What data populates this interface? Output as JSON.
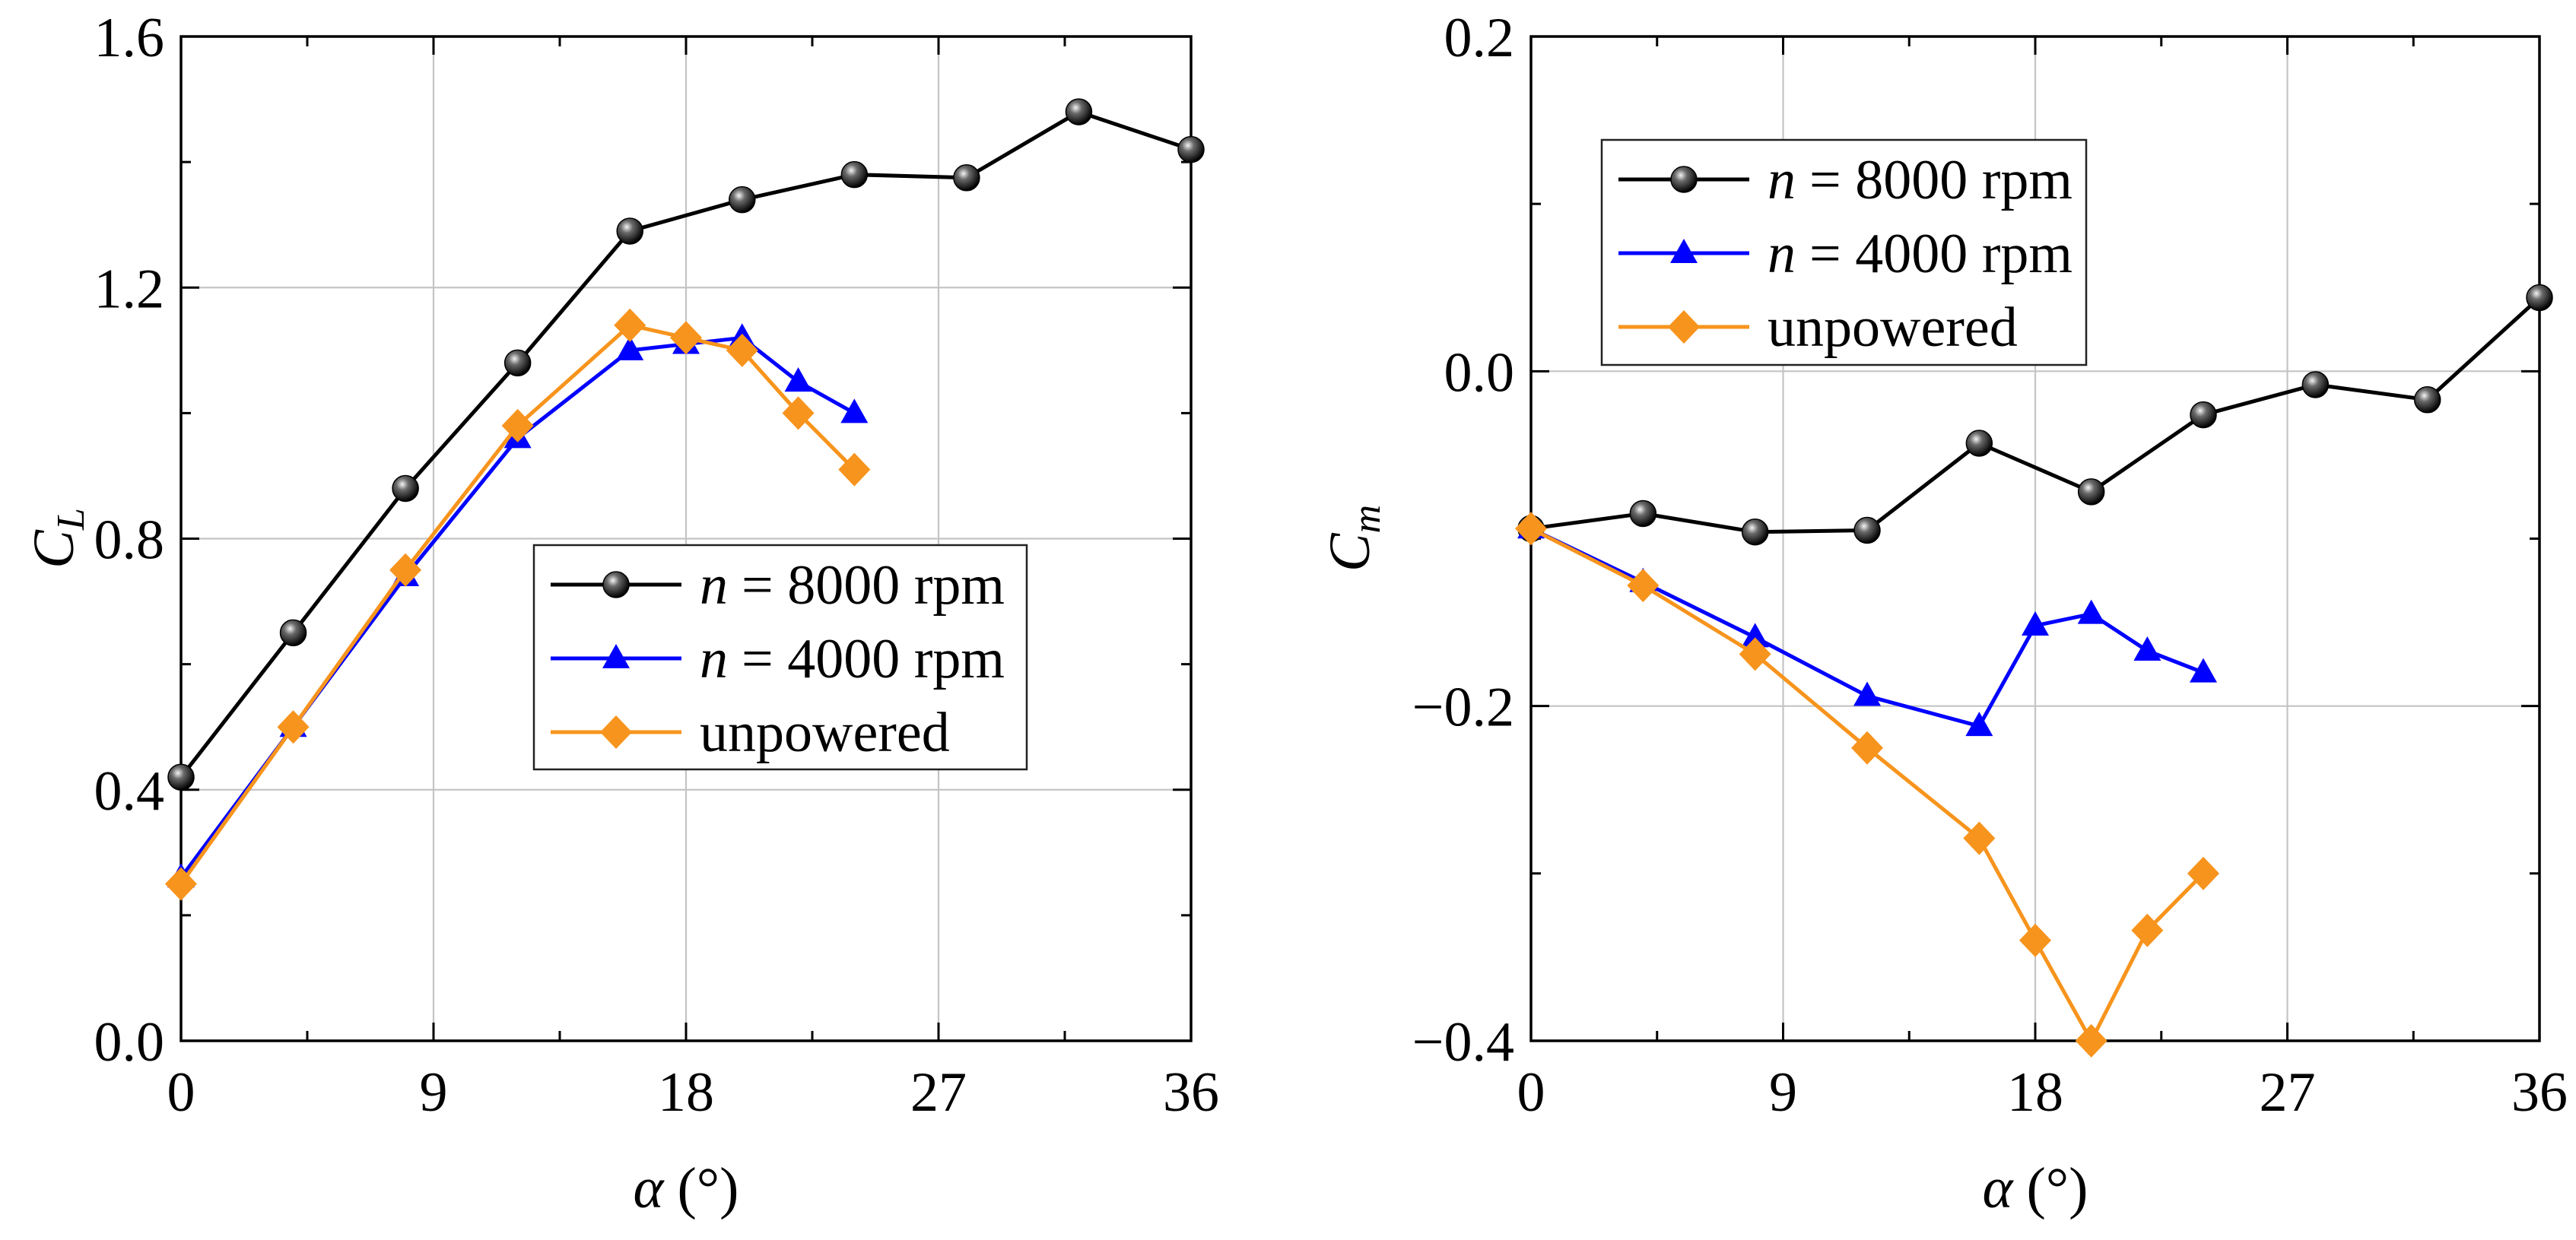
{
  "chart_data": [
    {
      "type": "line",
      "xlabel": {
        "symbol": "α",
        "unit": "(°)"
      },
      "ylabel": {
        "symbol": "C",
        "subscript": "L"
      },
      "xlim": [
        0,
        36
      ],
      "ylim": [
        0,
        1.6
      ],
      "xticks": [
        "0",
        "9",
        "18",
        "27",
        "36"
      ],
      "yticks": [
        "0.0",
        "0.4",
        "0.8",
        "1.2",
        "1.6"
      ],
      "grid": true,
      "legend": "center-right",
      "series": [
        {
          "name": {
            "var": "n",
            "text": "= 8000 rpm"
          },
          "color": "#000000",
          "marker": "circle",
          "x": [
            0,
            4,
            8,
            12,
            16,
            20,
            24,
            28,
            32,
            36
          ],
          "values": [
            0.42,
            0.65,
            0.88,
            1.08,
            1.29,
            1.34,
            1.38,
            1.375,
            1.48,
            1.42
          ]
        },
        {
          "name": {
            "var": "n",
            "text": "= 4000 rpm"
          },
          "color": "#0000ff",
          "marker": "triangle",
          "x": [
            0,
            4,
            8,
            12,
            16,
            18,
            20,
            22,
            24
          ],
          "values": [
            0.26,
            0.5,
            0.74,
            0.96,
            1.1,
            1.11,
            1.12,
            1.05,
            1.0
          ]
        },
        {
          "name": {
            "text": "unpowered"
          },
          "color": "#f7941d",
          "marker": "diamond",
          "x": [
            0,
            4,
            8,
            12,
            16,
            18,
            20,
            22,
            24
          ],
          "values": [
            0.25,
            0.5,
            0.75,
            0.98,
            1.14,
            1.12,
            1.1,
            1.0,
            0.91
          ]
        }
      ]
    },
    {
      "type": "line",
      "xlabel": {
        "symbol": "α",
        "unit": "(°)"
      },
      "ylabel": {
        "symbol": "C",
        "subscript": "m"
      },
      "xlim": [
        0,
        36
      ],
      "ylim": [
        -0.4,
        0.2
      ],
      "xticks": [
        "0",
        "9",
        "18",
        "27",
        "36"
      ],
      "yticks": [
        "−0.4",
        "−0.2",
        "0.0",
        "0.2"
      ],
      "grid": true,
      "legend": "top-left",
      "series": [
        {
          "name": {
            "var": "n",
            "text": "= 8000 rpm"
          },
          "color": "#000000",
          "marker": "circle",
          "x": [
            0,
            4,
            8,
            12,
            16,
            20,
            24,
            28,
            32,
            36
          ],
          "values": [
            -0.094,
            -0.085,
            -0.096,
            -0.095,
            -0.043,
            -0.072,
            -0.026,
            -0.008,
            -0.017,
            0.044
          ]
        },
        {
          "name": {
            "var": "n",
            "text": "= 4000 rpm"
          },
          "color": "#0000ff",
          "marker": "triangle",
          "x": [
            0,
            4,
            8,
            12,
            16,
            18,
            20,
            22,
            24
          ],
          "values": [
            -0.094,
            -0.126,
            -0.159,
            -0.194,
            -0.212,
            -0.152,
            -0.145,
            -0.167,
            -0.18
          ]
        },
        {
          "name": {
            "text": "unpowered"
          },
          "color": "#f7941d",
          "marker": "diamond",
          "x": [
            0,
            4,
            8,
            12,
            16,
            18,
            20,
            22,
            24
          ],
          "values": [
            -0.094,
            -0.128,
            -0.169,
            -0.225,
            -0.279,
            -0.34,
            -0.4,
            -0.334,
            -0.3
          ]
        }
      ]
    }
  ]
}
